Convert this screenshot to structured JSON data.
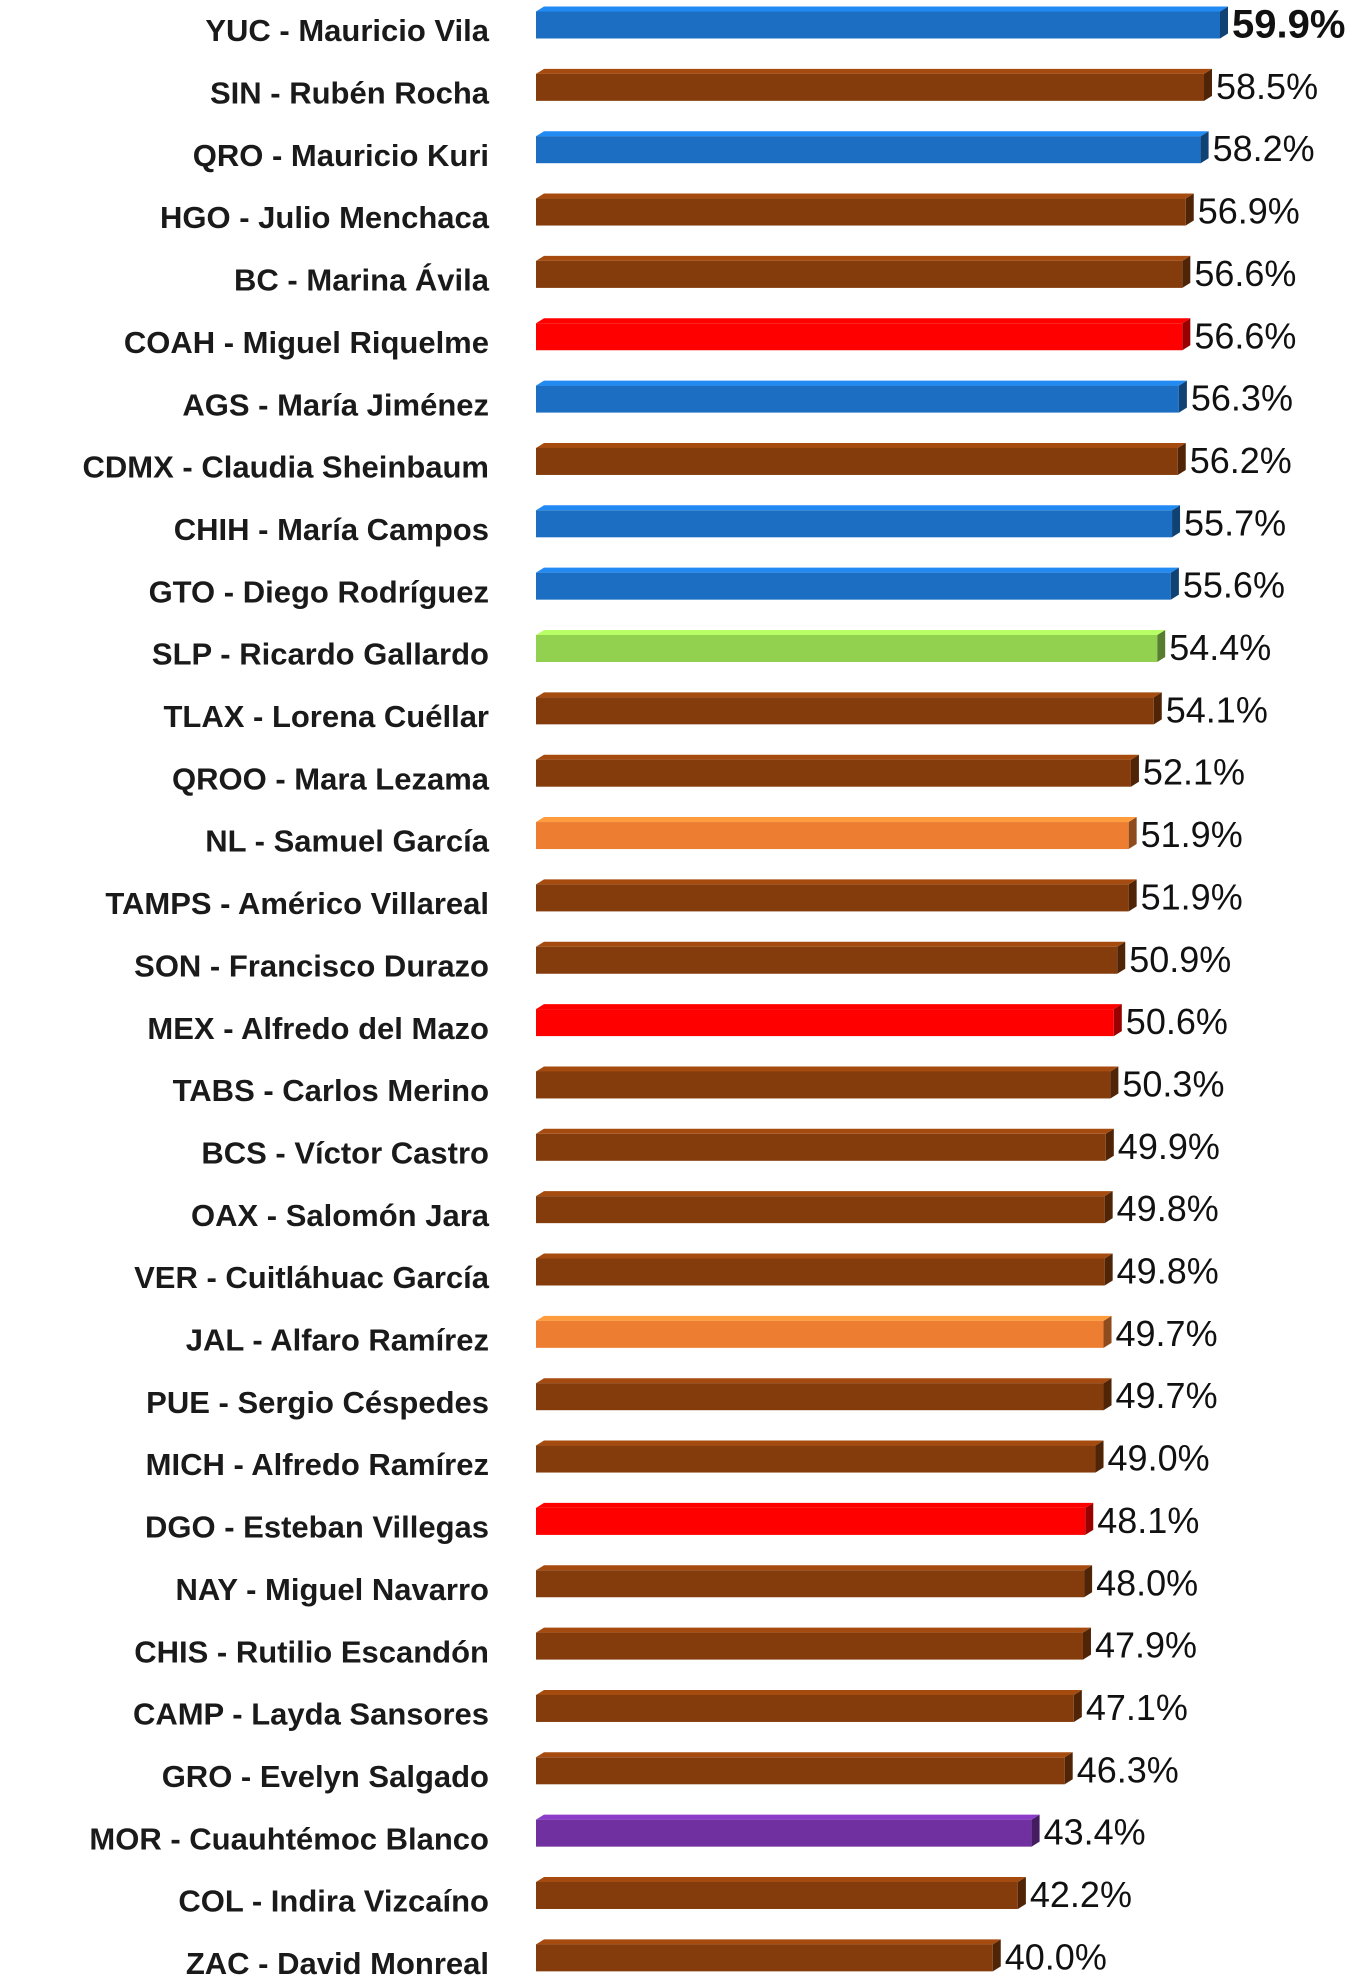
{
  "chart_data": {
    "type": "bar",
    "orientation": "horizontal",
    "categories": [
      "YUC - Mauricio Vila",
      "SIN - Rubén Rocha",
      "QRO - Mauricio Kuri",
      "HGO - Julio Menchaca",
      "BC - Marina Ávila",
      "COAH - Miguel Riquelme",
      "AGS - María Jiménez",
      "CDMX - Claudia Sheinbaum",
      "CHIH - María Campos",
      "GTO - Diego Rodríguez",
      "SLP - Ricardo Gallardo",
      "TLAX - Lorena Cuéllar",
      "QROO - Mara Lezama",
      "NL - Samuel García",
      "TAMPS - Américo Villareal",
      "SON - Francisco Durazo",
      "MEX - Alfredo del Mazo",
      "TABS - Carlos Merino",
      "BCS - Víctor Castro",
      "OAX - Salomón Jara",
      "VER - Cuitláhuac García",
      "JAL - Alfaro Ramírez",
      "PUE - Sergio Céspedes",
      "MICH - Alfredo Ramírez",
      "DGO - Esteban Villegas",
      "NAY - Miguel Navarro",
      "CHIS - Rutilio Escandón",
      "CAMP - Layda Sansores",
      "GRO - Evelyn Salgado",
      "MOR - Cuauhtémoc Blanco",
      "COL - Indira Vizcaíno",
      "ZAC - David Monreal"
    ],
    "values": [
      59.9,
      58.5,
      58.2,
      56.9,
      56.6,
      56.6,
      56.3,
      56.2,
      55.7,
      55.6,
      54.4,
      54.1,
      52.1,
      51.9,
      51.9,
      50.9,
      50.6,
      50.3,
      49.9,
      49.8,
      49.8,
      49.7,
      49.7,
      49.0,
      48.1,
      48.0,
      47.9,
      47.1,
      46.3,
      43.4,
      42.2,
      40.0
    ],
    "value_labels": [
      "59.9%",
      "58.5%",
      "58.2%",
      "56.9%",
      "56.6%",
      "56.6%",
      "56.3%",
      "56.2%",
      "55.7%",
      "55.6%",
      "54.4%",
      "54.1%",
      "52.1%",
      "51.9%",
      "51.9%",
      "50.9%",
      "50.6%",
      "50.3%",
      "49.9%",
      "49.8%",
      "49.8%",
      "49.7%",
      "49.7%",
      "49.0%",
      "48.1%",
      "48.0%",
      "47.9%",
      "47.1%",
      "46.3%",
      "43.4%",
      "42.2%",
      "40.0%"
    ],
    "colors": [
      "#1b6ec2",
      "#843c0c",
      "#1b6ec2",
      "#843c0c",
      "#843c0c",
      "#ff0000",
      "#1b6ec2",
      "#843c0c",
      "#1b6ec2",
      "#1b6ec2",
      "#92d050",
      "#843c0c",
      "#843c0c",
      "#ed7d31",
      "#843c0c",
      "#843c0c",
      "#ff0000",
      "#843c0c",
      "#843c0c",
      "#843c0c",
      "#843c0c",
      "#ed7d31",
      "#843c0c",
      "#843c0c",
      "#ff0000",
      "#843c0c",
      "#843c0c",
      "#843c0c",
      "#843c0c",
      "#7030a0",
      "#843c0c",
      "#843c0c"
    ]
  }
}
